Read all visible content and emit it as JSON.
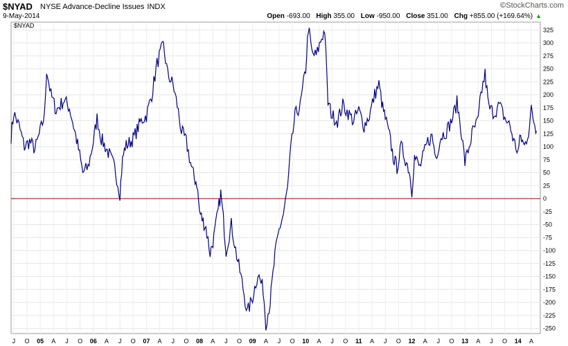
{
  "header": {
    "symbol": "$NYAD",
    "name": "NYSE Advance-Decline Issues",
    "exchange": "INDX",
    "date": "9-May-2014",
    "logo_text": "StockCharts.com",
    "open_label": "Open",
    "open": "-693.00",
    "high_label": "High",
    "high": "355.00",
    "low_label": "Low",
    "low": "-950.00",
    "close_label": "Close",
    "close": "351.00",
    "chg_label": "Chg",
    "chg": "+855.00 (+169.64%)"
  },
  "chart_data": {
    "type": "line",
    "title": "$NYAD",
    "series_label": "$NYAD",
    "line_color": "#000080",
    "zero_line_color": "#8b0000",
    "ylim": [
      -260,
      340
    ],
    "yticks": [
      325,
      300,
      275,
      250,
      225,
      200,
      175,
      150,
      125,
      100,
      75,
      50,
      25,
      0,
      -25,
      -50,
      -75,
      -100,
      -125,
      -150,
      -175,
      -200,
      -225,
      -250
    ],
    "xlim": [
      2004.45,
      2014.42
    ],
    "xticks": [
      {
        "x": 2004.5,
        "label": "J"
      },
      {
        "x": 2004.75,
        "label": "O"
      },
      {
        "x": 2005.0,
        "label": "05"
      },
      {
        "x": 2005.25,
        "label": "A"
      },
      {
        "x": 2005.5,
        "label": "J"
      },
      {
        "x": 2005.75,
        "label": "O"
      },
      {
        "x": 2006.0,
        "label": "06"
      },
      {
        "x": 2006.25,
        "label": "A"
      },
      {
        "x": 2006.5,
        "label": "J"
      },
      {
        "x": 2006.75,
        "label": "O"
      },
      {
        "x": 2007.0,
        "label": "07"
      },
      {
        "x": 2007.25,
        "label": "A"
      },
      {
        "x": 2007.5,
        "label": "J"
      },
      {
        "x": 2007.75,
        "label": "O"
      },
      {
        "x": 2008.0,
        "label": "08"
      },
      {
        "x": 2008.25,
        "label": "A"
      },
      {
        "x": 2008.5,
        "label": "J"
      },
      {
        "x": 2008.75,
        "label": "O"
      },
      {
        "x": 2009.0,
        "label": "09"
      },
      {
        "x": 2009.25,
        "label": "A"
      },
      {
        "x": 2009.5,
        "label": "J"
      },
      {
        "x": 2009.75,
        "label": "O"
      },
      {
        "x": 2010.0,
        "label": "10"
      },
      {
        "x": 2010.25,
        "label": "A"
      },
      {
        "x": 2010.5,
        "label": "J"
      },
      {
        "x": 2010.75,
        "label": "O"
      },
      {
        "x": 2011.0,
        "label": "11"
      },
      {
        "x": 2011.25,
        "label": "A"
      },
      {
        "x": 2011.5,
        "label": "J"
      },
      {
        "x": 2011.75,
        "label": "O"
      },
      {
        "x": 2012.0,
        "label": "12"
      },
      {
        "x": 2012.25,
        "label": "A"
      },
      {
        "x": 2012.5,
        "label": "J"
      },
      {
        "x": 2012.75,
        "label": "O"
      },
      {
        "x": 2013.0,
        "label": "13"
      },
      {
        "x": 2013.25,
        "label": "A"
      },
      {
        "x": 2013.5,
        "label": "J"
      },
      {
        "x": 2013.75,
        "label": "O"
      },
      {
        "x": 2014.0,
        "label": "14"
      },
      {
        "x": 2014.25,
        "label": "A"
      }
    ],
    "bold_years": [
      "05",
      "06",
      "07",
      "08",
      "09",
      "10",
      "11",
      "12",
      "13",
      "14"
    ],
    "points": [
      [
        2004.45,
        120
      ],
      [
        2004.5,
        165
      ],
      [
        2004.6,
        140
      ],
      [
        2004.7,
        100
      ],
      [
        2004.8,
        110
      ],
      [
        2004.9,
        95
      ],
      [
        2005.0,
        130
      ],
      [
        2005.08,
        160
      ],
      [
        2005.12,
        250
      ],
      [
        2005.2,
        200
      ],
      [
        2005.3,
        170
      ],
      [
        2005.45,
        190
      ],
      [
        2005.55,
        175
      ],
      [
        2005.65,
        130
      ],
      [
        2005.72,
        95
      ],
      [
        2005.8,
        50
      ],
      [
        2005.9,
        60
      ],
      [
        2006.0,
        110
      ],
      [
        2006.07,
        155
      ],
      [
        2006.15,
        115
      ],
      [
        2006.3,
        85
      ],
      [
        2006.4,
        60
      ],
      [
        2006.5,
        10
      ],
      [
        2006.55,
        75
      ],
      [
        2006.6,
        100
      ],
      [
        2006.75,
        115
      ],
      [
        2006.9,
        150
      ],
      [
        2007.0,
        160
      ],
      [
        2007.1,
        200
      ],
      [
        2007.2,
        260
      ],
      [
        2007.28,
        285
      ],
      [
        2007.32,
        295
      ],
      [
        2007.4,
        240
      ],
      [
        2007.5,
        220
      ],
      [
        2007.58,
        180
      ],
      [
        2007.66,
        130
      ],
      [
        2007.75,
        110
      ],
      [
        2007.85,
        60
      ],
      [
        2007.9,
        40
      ],
      [
        2007.95,
        30
      ],
      [
        2008.0,
        -25
      ],
      [
        2008.05,
        -40
      ],
      [
        2008.12,
        -55
      ],
      [
        2008.2,
        -105
      ],
      [
        2008.27,
        -75
      ],
      [
        2008.35,
        -25
      ],
      [
        2008.4,
        10
      ],
      [
        2008.45,
        -40
      ],
      [
        2008.5,
        -100
      ],
      [
        2008.6,
        -50
      ],
      [
        2008.7,
        -110
      ],
      [
        2008.8,
        -160
      ],
      [
        2008.9,
        -220
      ],
      [
        2009.0,
        -190
      ],
      [
        2009.1,
        -145
      ],
      [
        2009.2,
        -175
      ],
      [
        2009.25,
        -240
      ],
      [
        2009.33,
        -200
      ],
      [
        2009.42,
        -110
      ],
      [
        2009.5,
        -60
      ],
      [
        2009.58,
        -30
      ],
      [
        2009.66,
        20
      ],
      [
        2009.72,
        95
      ],
      [
        2009.8,
        160
      ],
      [
        2009.9,
        180
      ],
      [
        2010.0,
        250
      ],
      [
        2010.05,
        330
      ],
      [
        2010.12,
        280
      ],
      [
        2010.2,
        275
      ],
      [
        2010.3,
        310
      ],
      [
        2010.36,
        325
      ],
      [
        2010.42,
        185
      ],
      [
        2010.5,
        160
      ],
      [
        2010.6,
        150
      ],
      [
        2010.7,
        180
      ],
      [
        2010.8,
        165
      ],
      [
        2010.9,
        150
      ],
      [
        2011.0,
        170
      ],
      [
        2011.1,
        140
      ],
      [
        2011.2,
        160
      ],
      [
        2011.3,
        200
      ],
      [
        2011.38,
        220
      ],
      [
        2011.45,
        175
      ],
      [
        2011.5,
        155
      ],
      [
        2011.58,
        120
      ],
      [
        2011.65,
        80
      ],
      [
        2011.72,
        60
      ],
      [
        2011.8,
        100
      ],
      [
        2011.9,
        70
      ],
      [
        2011.95,
        55
      ],
      [
        2012.0,
        15
      ],
      [
        2012.05,
        80
      ],
      [
        2012.15,
        60
      ],
      [
        2012.3,
        110
      ],
      [
        2012.38,
        120
      ],
      [
        2012.45,
        80
      ],
      [
        2012.55,
        120
      ],
      [
        2012.65,
        130
      ],
      [
        2012.75,
        150
      ],
      [
        2012.85,
        185
      ],
      [
        2012.92,
        140
      ],
      [
        2013.0,
        70
      ],
      [
        2013.08,
        100
      ],
      [
        2013.15,
        130
      ],
      [
        2013.25,
        150
      ],
      [
        2013.3,
        200
      ],
      [
        2013.38,
        240
      ],
      [
        2013.45,
        175
      ],
      [
        2013.55,
        165
      ],
      [
        2013.65,
        180
      ],
      [
        2013.75,
        155
      ],
      [
        2013.85,
        140
      ],
      [
        2013.92,
        110
      ],
      [
        2014.0,
        90
      ],
      [
        2014.05,
        120
      ],
      [
        2014.12,
        100
      ],
      [
        2014.2,
        130
      ],
      [
        2014.25,
        170
      ],
      [
        2014.3,
        150
      ],
      [
        2014.35,
        130
      ]
    ]
  }
}
